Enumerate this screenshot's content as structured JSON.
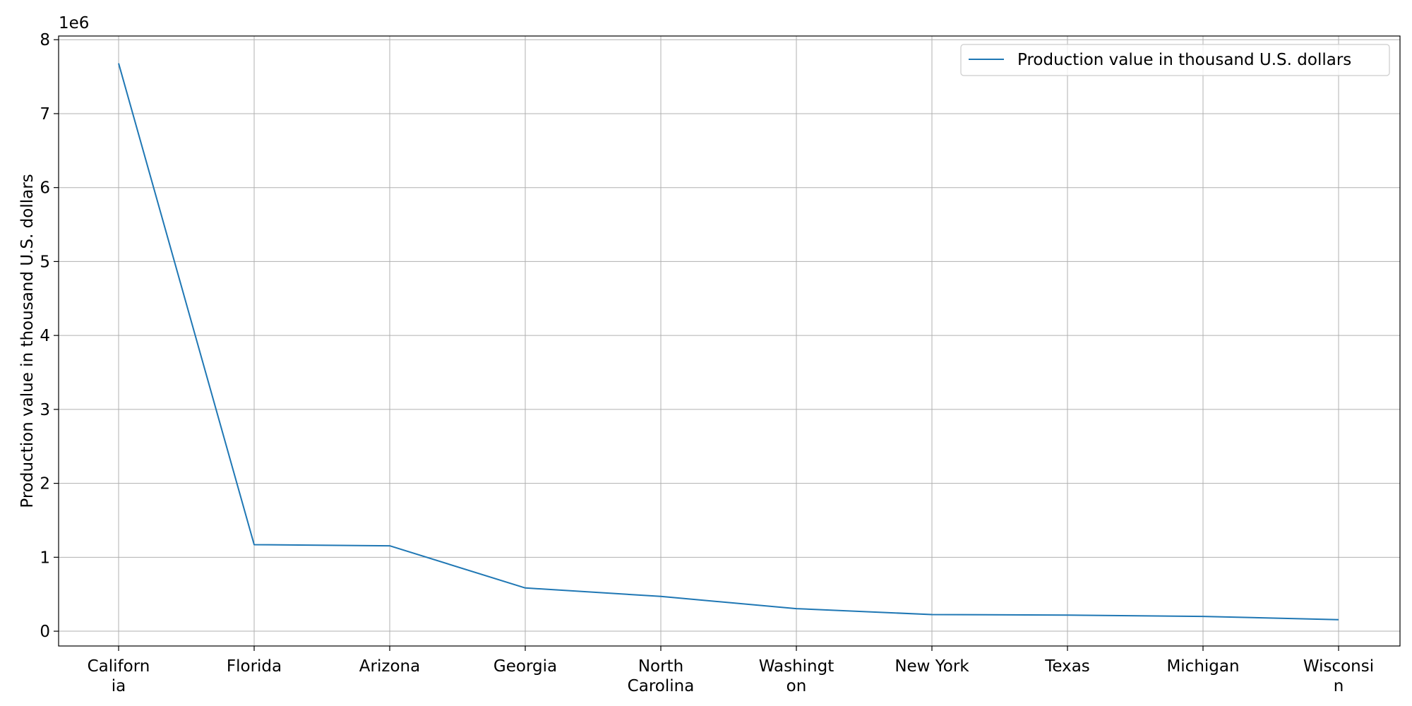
{
  "chart_data": {
    "type": "line",
    "categories": [
      "California",
      "Florida",
      "Arizona",
      "Georgia",
      "North Carolina",
      "Washington",
      "New York",
      "Texas",
      "Michigan",
      "Wisconsin"
    ],
    "category_tick_labels": [
      [
        "Californ",
        "ia"
      ],
      [
        "Florida"
      ],
      [
        "Arizona"
      ],
      [
        "Georgia"
      ],
      [
        "North",
        "Carolina"
      ],
      [
        "Washingt",
        "on"
      ],
      [
        "New York"
      ],
      [
        "Texas"
      ],
      [
        "Michigan"
      ],
      [
        "Wisconsi",
        "n"
      ]
    ],
    "series": [
      {
        "name": "Production value in thousand U.S. dollars",
        "values": [
          7680000,
          1170000,
          1155000,
          585000,
          470000,
          305000,
          225000,
          218000,
          200000,
          155000
        ],
        "color": "#1f77b4"
      }
    ],
    "title": "",
    "xlabel": "",
    "ylabel": "Production value in thousand U.S. dollars",
    "ylim": [
      -200000,
      8050000
    ],
    "y_ticks": [
      0,
      1,
      2,
      3,
      4,
      5,
      6,
      7,
      8
    ],
    "y_offset_label": "1e6",
    "y_scale_factor": 1000000,
    "grid": true,
    "legend_position": "upper right"
  }
}
